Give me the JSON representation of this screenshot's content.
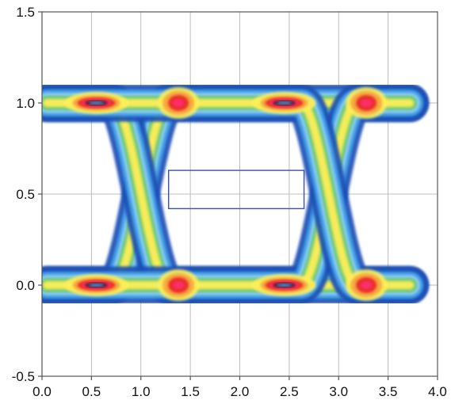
{
  "chart_data": {
    "type": "heatmap",
    "title": "",
    "xlabel": "",
    "ylabel": "",
    "xlim": [
      0,
      4
    ],
    "ylim": [
      -0.5,
      1.5
    ],
    "x_ticks": [
      0.0,
      0.5,
      1.0,
      1.5,
      2.0,
      2.5,
      3.0,
      3.5,
      4.0
    ],
    "x_tick_labels": [
      "0.0",
      "0.5",
      "1.0",
      "1.5",
      "2.0",
      "2.5",
      "3.0",
      "3.5",
      "4.0"
    ],
    "y_ticks": [
      -0.5,
      0.0,
      0.5,
      1.0,
      1.5
    ],
    "y_tick_labels": [
      "-0.5",
      "0.0",
      "0.5",
      "1.0",
      "1.5"
    ],
    "grid": true,
    "data_extent_x": [
      0.05,
      3.72
    ],
    "eye_crossings_x": [
      1.0,
      2.9
    ],
    "logic_levels_y": [
      0.0,
      1.0
    ],
    "bit_period": 1.9,
    "mask": {
      "x_range": [
        1.28,
        2.65
      ],
      "y_range": [
        0.42,
        0.63
      ]
    },
    "colors": {
      "density_scale": [
        "#1f4fb5",
        "#45a6ec",
        "#9bd3f4",
        "#5cc38a",
        "#a6d85a",
        "#ffef5a",
        "#f7a23a",
        "#e8202a",
        "#ff2e73",
        "#111111"
      ],
      "mask": "#3f51a0",
      "grid": "#bdbdbd",
      "frame": "#555555"
    }
  }
}
